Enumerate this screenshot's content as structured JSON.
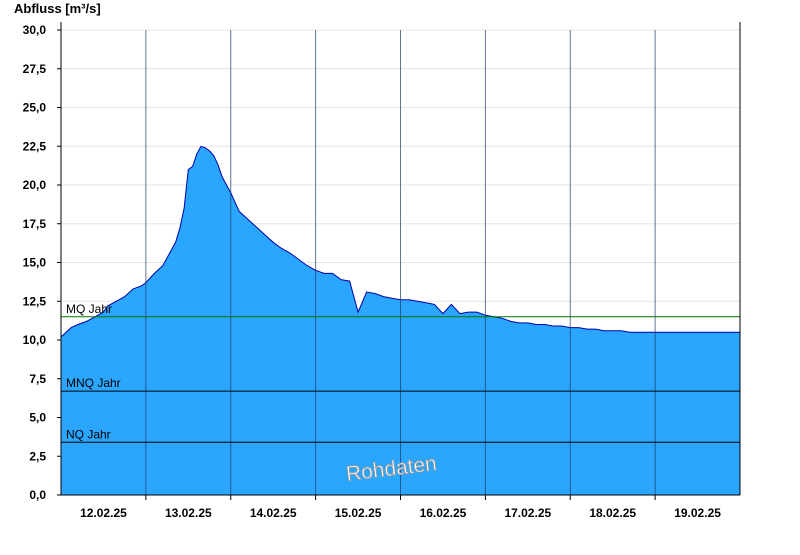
{
  "chart_data": {
    "type": "area",
    "ylabel": "Abfluss [m³/s]",
    "ylim": [
      0,
      30
    ],
    "yticks": [
      "0,0",
      "2,5",
      "5,0",
      "7,5",
      "10,0",
      "12,5",
      "15,0",
      "17,5",
      "20,0",
      "22,5",
      "25,0",
      "27,5",
      "30,0"
    ],
    "xlim": [
      0,
      8
    ],
    "xticks": [
      {
        "label": "12.02.25",
        "x": 0.5
      },
      {
        "label": "13.02.25",
        "x": 1.5
      },
      {
        "label": "14.02.25",
        "x": 2.5
      },
      {
        "label": "15.02.25",
        "x": 3.5
      },
      {
        "label": "16.02.25",
        "x": 4.5
      },
      {
        "label": "17.02.25",
        "x": 5.5
      },
      {
        "label": "18.02.25",
        "x": 6.5
      },
      {
        "label": "19.02.25",
        "x": 7.5
      }
    ],
    "x_unit": "days",
    "grid": true,
    "series": [
      {
        "x": [
          0,
          0.06,
          0.12,
          0.2,
          0.3,
          0.4,
          0.5,
          0.55,
          0.65,
          0.75,
          0.85,
          0.95,
          1.0,
          1.05,
          1.1,
          1.2,
          1.3,
          1.35,
          1.4,
          1.45,
          1.5,
          1.55,
          1.6,
          1.65,
          1.7,
          1.75,
          1.8,
          1.85,
          1.9,
          2.0,
          2.1,
          2.2,
          2.3,
          2.4,
          2.5,
          2.6,
          2.7,
          2.8,
          2.9,
          3.0,
          3.1,
          3.2,
          3.3,
          3.4,
          3.5,
          3.6,
          3.7,
          3.8,
          3.9,
          4.0,
          4.1,
          4.2,
          4.3,
          4.4,
          4.5,
          4.6,
          4.7,
          4.8,
          4.9,
          5.0,
          5.1,
          5.2,
          5.3,
          5.4,
          5.5,
          5.6,
          5.7,
          5.8,
          5.9,
          6.0,
          6.1,
          6.2,
          6.3,
          6.4,
          6.5,
          6.6,
          6.7,
          6.8,
          6.9,
          7.0,
          7.1,
          7.2,
          7.3,
          7.4,
          7.5,
          7.6,
          7.7,
          7.8,
          7.9,
          8.0
        ],
        "values": [
          10.2,
          10.5,
          10.8,
          11.0,
          11.2,
          11.5,
          11.8,
          12.2,
          12.5,
          12.8,
          13.3,
          13.5,
          13.7,
          14.0,
          14.3,
          14.8,
          15.8,
          16.3,
          17.2,
          18.5,
          21.0,
          21.2,
          22.0,
          22.5,
          22.4,
          22.2,
          21.9,
          21.3,
          20.5,
          19.5,
          18.3,
          17.8,
          17.3,
          16.8,
          16.3,
          15.9,
          15.6,
          15.2,
          14.8,
          14.5,
          14.3,
          14.3,
          13.9,
          13.8,
          11.8,
          13.1,
          13.0,
          12.8,
          12.7,
          12.6,
          12.6,
          12.5,
          12.4,
          12.3,
          11.7,
          12.3,
          11.7,
          11.8,
          11.8,
          11.6,
          11.5,
          11.4,
          11.2,
          11.1,
          11.1,
          11.0,
          11.0,
          10.9,
          10.9,
          10.8,
          10.8,
          10.7,
          10.7,
          10.6,
          10.6,
          10.6,
          10.5,
          10.5,
          10.5,
          10.5,
          10.5,
          10.5,
          10.5,
          10.5,
          10.5,
          10.5,
          10.5,
          10.5,
          10.5,
          10.5
        ],
        "fill": "#2aa6ff",
        "line": "#0000aa"
      }
    ],
    "reference_lines": [
      {
        "label": "MQ Jahr",
        "y": 11.5,
        "color": "#007700"
      },
      {
        "label": "MNQ Jahr",
        "y": 6.7,
        "color": "#000000"
      },
      {
        "label": "NQ Jahr",
        "y": 3.4,
        "color": "#000000"
      }
    ],
    "annotation": "Rohdaten"
  }
}
